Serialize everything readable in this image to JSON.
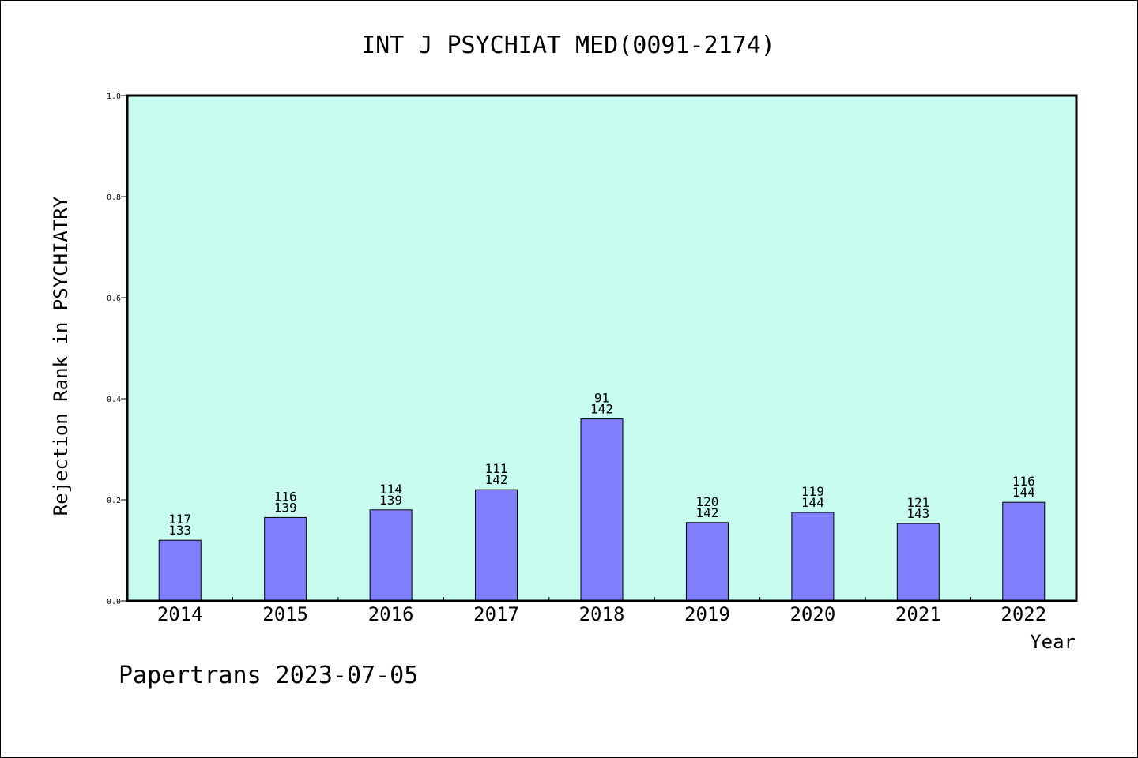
{
  "chart_data": {
    "type": "bar",
    "title": "INT J PSYCHIAT MED(0091-2174)",
    "xlabel": "Year",
    "ylabel": "Rejection Rank in PSYCHIATRY",
    "ylim": [
      0,
      1.0
    ],
    "y_ticks": [
      "0.0",
      "0.2",
      "0.4",
      "0.6",
      "0.8",
      "1.0"
    ],
    "y_tick_values": [
      0.0,
      0.2,
      0.4,
      0.6,
      0.8,
      1.0
    ],
    "categories": [
      "2014",
      "2015",
      "2016",
      "2017",
      "2018",
      "2019",
      "2020",
      "2021",
      "2022"
    ],
    "values": [
      0.12,
      0.165,
      0.18,
      0.22,
      0.36,
      0.155,
      0.175,
      0.153,
      0.195
    ],
    "bar_labels_top": [
      "117",
      "116",
      "114",
      "111",
      "91",
      "120",
      "119",
      "121",
      "116"
    ],
    "bar_labels_bottom": [
      "133",
      "139",
      "139",
      "142",
      "142",
      "142",
      "144",
      "143",
      "144"
    ],
    "grid": false,
    "legend": "none"
  },
  "footer": {
    "text": "Papertrans 2023-07-05"
  },
  "colors": {
    "plot_background": "#c8fcee",
    "bar_fill": "#8080ff",
    "bar_stroke": "#000000",
    "axis": "#000000",
    "text": "#000000",
    "page_background": "#ffffff"
  }
}
